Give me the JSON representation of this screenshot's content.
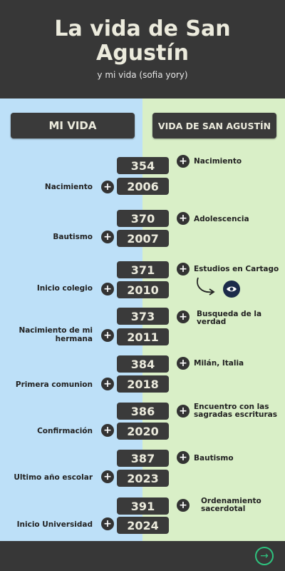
{
  "header": {
    "title": "La vida de San Agustín",
    "subtitle": "y mi vida (sofia yory)"
  },
  "columns": {
    "left_title": "MI VIDA",
    "right_title": "VIDA DE SAN AGUSTÍN"
  },
  "events": [
    {
      "augustine_year": "354",
      "augustine_event": "Nacimiento",
      "my_year": "2006",
      "my_event": "Nacimiento"
    },
    {
      "augustine_year": "370",
      "augustine_event": "Adolescencia",
      "my_year": "2007",
      "my_event": "Bautismo"
    },
    {
      "augustine_year": "371",
      "augustine_event": "Estudios en Cartago",
      "my_year": "2010",
      "my_event": "Inicio colegio"
    },
    {
      "augustine_year": "373",
      "augustine_event": "Busqueda de la verdad",
      "my_year": "2011",
      "my_event": "Nacimiento de mi hermana"
    },
    {
      "augustine_year": "384",
      "augustine_event": "Milán, Italia",
      "my_year": "2018",
      "my_event": "Primera comunion"
    },
    {
      "augustine_year": "386",
      "augustine_event": "Encuentro con las sagradas escrituras",
      "my_year": "2020",
      "my_event": "Confirmación"
    },
    {
      "augustine_year": "387",
      "augustine_event": "Bautismo",
      "my_year": "2023",
      "my_event": "Ultimo año escolar"
    },
    {
      "augustine_year": "391",
      "augustine_event": "Ordenamiento sacerdotal",
      "my_year": "2024",
      "my_event": "Inicio Universidad"
    }
  ],
  "icons": {
    "plus": "plus-icon",
    "eye": "eye-icon",
    "curved_arrow": "curved-arrow-icon",
    "next": "arrow-right-icon"
  },
  "colors": {
    "dark": "#373737",
    "left_bg": "#bde0f8",
    "right_bg": "#d9efc7",
    "accent_green": "#2ec27e"
  }
}
